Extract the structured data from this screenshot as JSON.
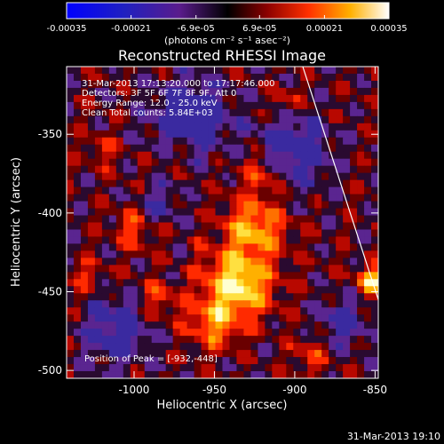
{
  "colorbar": {
    "ticks": [
      "-0.00035",
      "-0.00021",
      "-6.9e-05",
      "6.9e-05",
      "0.00021",
      "0.00035"
    ],
    "label": "(photons cm⁻² s⁻¹ asec⁻²)",
    "range": [
      -0.00035,
      0.00035
    ]
  },
  "chart_data": {
    "type": "heatmap",
    "title": "Reconstructed RHESSI Image",
    "xlabel": "Heliocentric X (arcsec)",
    "ylabel": "Heliocentric Y (arcsec)",
    "xlim": [
      -1042,
      -848
    ],
    "ylim": [
      -505,
      -307
    ],
    "x_ticks": [
      "-1000",
      "-950",
      "-900",
      "-850"
    ],
    "y_ticks": [
      "-350",
      "-400",
      "-450",
      "-500"
    ],
    "info": [
      "31-Mar-2013 17:13:20.000 to 17:17:46.000",
      "Detectors: 3F 5F 6F 7F 8F 9F, Att 0",
      "Energy Range: 12.0 - 25.0 keV",
      "Clean    Total counts: 5.84E+03"
    ],
    "peak_label": "Position of Peak = [-932,-448]",
    "peak": [
      -932,
      -448
    ],
    "limb_line": [
      [
        -895,
        -307
      ],
      [
        -848,
        -455
      ]
    ]
  },
  "footer": {
    "timestamp": "31-Mar-2013 19:10"
  }
}
